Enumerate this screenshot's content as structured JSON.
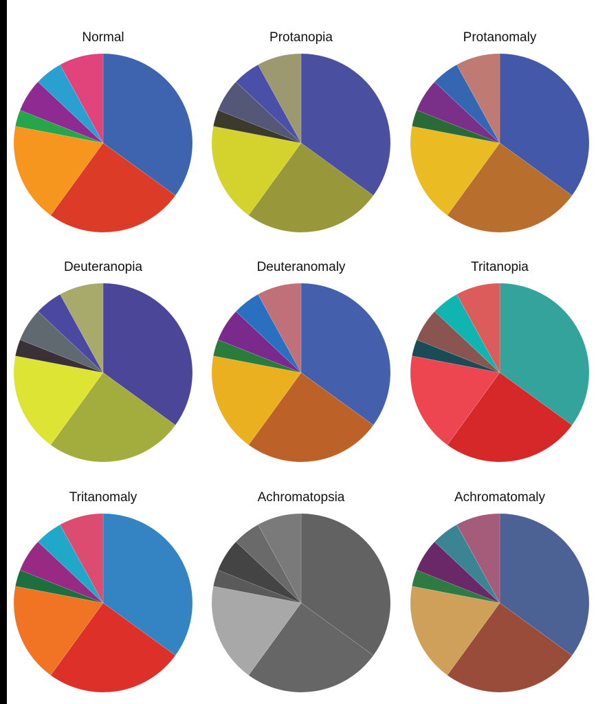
{
  "chart_data": [
    {
      "type": "pie",
      "title": "Normal",
      "values": [
        35,
        25,
        18,
        3,
        6,
        5,
        8
      ],
      "colors": [
        "#3e64b0",
        "#dc3c27",
        "#f7961e",
        "#27a54a",
        "#8e2a92",
        "#2aa0d0",
        "#e0447a"
      ]
    },
    {
      "type": "pie",
      "title": "Protanopia",
      "values": [
        35,
        25,
        18,
        3,
        6,
        5,
        8
      ],
      "colors": [
        "#4a4fa0",
        "#98983a",
        "#d4d22c",
        "#3c3a2c",
        "#555778",
        "#4a50a8",
        "#9c9870"
      ]
    },
    {
      "type": "pie",
      "title": "Protanomaly",
      "values": [
        35,
        25,
        18,
        3,
        6,
        5,
        8
      ],
      "colors": [
        "#4358a8",
        "#b86e2c",
        "#eabb22",
        "#2a6a38",
        "#7a3088",
        "#3466b2",
        "#c07a74"
      ]
    },
    {
      "type": "pie",
      "title": "Deuteranopia",
      "values": [
        35,
        25,
        18,
        3,
        6,
        5,
        8
      ],
      "colors": [
        "#4b4698",
        "#a3ad3e",
        "#dde434",
        "#3a3038",
        "#606870",
        "#4a48a0",
        "#a8aa6c"
      ]
    },
    {
      "type": "pie",
      "title": "Deuteranomaly",
      "values": [
        35,
        25,
        18,
        3,
        6,
        5,
        8
      ],
      "colors": [
        "#4460ac",
        "#bc6228",
        "#ebb020",
        "#2a7c3c",
        "#7a2a8c",
        "#2a70c0",
        "#c07078"
      ]
    },
    {
      "type": "pie",
      "title": "Tritanopia",
      "values": [
        35,
        25,
        18,
        3,
        6,
        5,
        8
      ],
      "colors": [
        "#33a39c",
        "#d62828",
        "#ee4650",
        "#1a4c58",
        "#8a5450",
        "#10b4b0",
        "#dc5c5c"
      ]
    },
    {
      "type": "pie",
      "title": "Tritanomaly",
      "values": [
        35,
        25,
        18,
        3,
        6,
        5,
        8
      ],
      "colors": [
        "#3484c4",
        "#dc3028",
        "#f07424",
        "#1c7040",
        "#982a84",
        "#20a8c8",
        "#dc4c70"
      ]
    },
    {
      "type": "pie",
      "title": "Achromatopsia",
      "values": [
        35,
        25,
        18,
        3,
        6,
        5,
        8
      ],
      "colors": [
        "#626262",
        "#666666",
        "#a8a8a8",
        "#5a5a5a",
        "#444444",
        "#6a6a6a",
        "#7a7a7a"
      ]
    },
    {
      "type": "pie",
      "title": "Achromatomaly",
      "values": [
        35,
        25,
        18,
        3,
        6,
        5,
        8
      ],
      "colors": [
        "#4c6294",
        "#9a4c3a",
        "#cfa05a",
        "#2e7a42",
        "#6a2868",
        "#3a8494",
        "#a45c7a"
      ]
    }
  ]
}
